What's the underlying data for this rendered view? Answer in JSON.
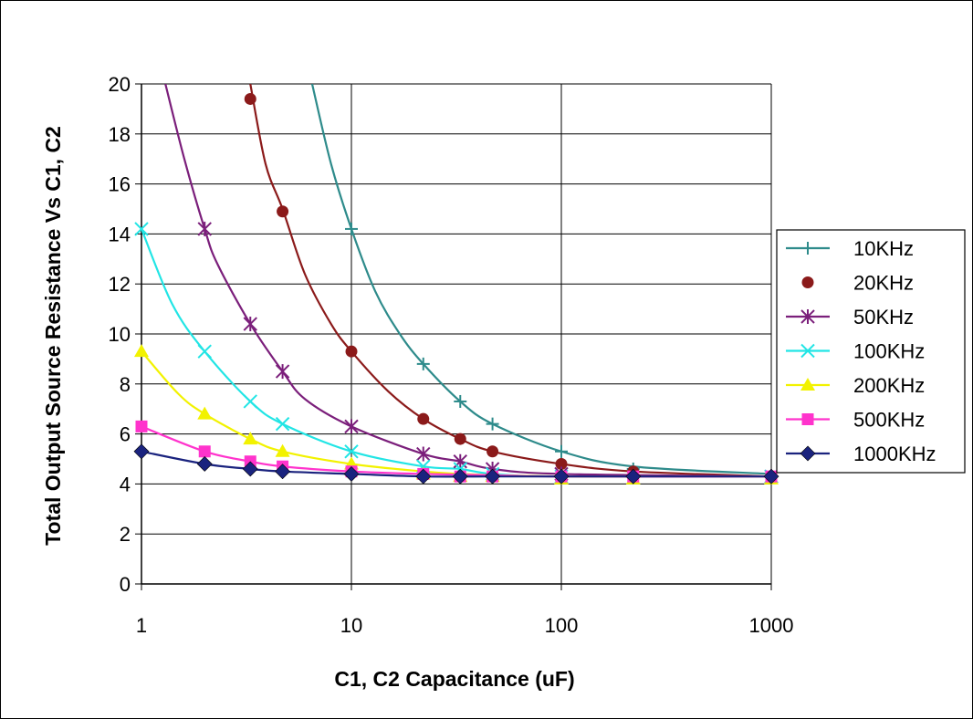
{
  "chart_data": {
    "type": "line",
    "title": "",
    "xlabel": "C1, C2 Capacitance (uF)",
    "ylabel": "Total Output Source Resistance Vs C1, C2",
    "xscale": "log",
    "xlim": [
      1,
      1000
    ],
    "ylim": [
      0,
      20
    ],
    "xticks": [
      "1",
      "10",
      "100",
      "1000"
    ],
    "yticks": [
      "0",
      "2",
      "4",
      "6",
      "8",
      "10",
      "12",
      "14",
      "16",
      "18",
      "20"
    ],
    "grid": "on",
    "legend_position": "right",
    "series": [
      {
        "name": "10KHz",
        "marker": "plus",
        "color": "#2E8B8B",
        "curve_x": [
          6.5,
          8,
          10,
          13,
          17,
          22,
          33,
          47,
          100,
          220,
          1000
        ],
        "curve_y": [
          20,
          16.8,
          14.2,
          11.7,
          10,
          8.8,
          7.3,
          6.4,
          5.3,
          4.7,
          4.4
        ],
        "marker_x": [
          10,
          22,
          33,
          47,
          100,
          220,
          1000
        ],
        "marker_y": [
          14.2,
          8.8,
          7.3,
          6.4,
          5.3,
          4.6,
          4.3
        ]
      },
      {
        "name": "20KHz",
        "marker": "circle",
        "color": "#8B1A1A",
        "curve_x": [
          3.3,
          3.9,
          4.7,
          6,
          8,
          10,
          15,
          22,
          33,
          47,
          100,
          220,
          1000
        ],
        "curve_y": [
          20,
          16.8,
          15,
          12.4,
          10.4,
          9.3,
          7.7,
          6.6,
          5.8,
          5.3,
          4.8,
          4.5,
          4.3
        ],
        "marker_x": [
          3.3,
          4.7,
          10,
          22,
          33,
          47,
          100,
          220,
          1000
        ],
        "marker_y": [
          19.4,
          14.9,
          9.3,
          6.6,
          5.8,
          5.3,
          4.8,
          4.5,
          4.3
        ]
      },
      {
        "name": "50KHz",
        "marker": "star",
        "color": "#7B1F7B",
        "curve_x": [
          1.3,
          1.6,
          2,
          2.3,
          3.3,
          4.7,
          6,
          10,
          22,
          33,
          47,
          100,
          1000
        ],
        "curve_y": [
          20,
          17,
          14.2,
          12.8,
          10.4,
          8.5,
          7.4,
          6.3,
          5.2,
          4.9,
          4.6,
          4.4,
          4.3
        ],
        "marker_x": [
          2,
          3.3,
          4.7,
          10,
          22,
          33,
          47,
          100,
          1000
        ],
        "marker_y": [
          14.2,
          10.4,
          8.5,
          6.3,
          5.2,
          4.9,
          4.6,
          4.4,
          4.3
        ]
      },
      {
        "name": "100KHz",
        "marker": "x",
        "color": "#22E5E5",
        "curve_x": [
          1,
          1.4,
          2,
          3.3,
          4.7,
          10,
          22,
          33,
          47,
          100,
          1000
        ],
        "curve_y": [
          14.2,
          11.2,
          9.3,
          7.3,
          6.4,
          5.3,
          4.7,
          4.6,
          4.4,
          4.3,
          4.3
        ],
        "marker_x": [
          1,
          2,
          3.3,
          4.7,
          10,
          22,
          33,
          47,
          100,
          1000
        ],
        "marker_y": [
          14.2,
          9.3,
          7.3,
          6.4,
          5.3,
          4.7,
          4.6,
          4.4,
          4.3,
          4.3
        ]
      },
      {
        "name": "200KHz",
        "marker": "triangle",
        "color": "#F2F200",
        "curve_x": [
          1,
          1.5,
          2,
          3.3,
          4.7,
          10,
          22,
          33,
          47,
          100,
          220,
          1000
        ],
        "curve_y": [
          9.3,
          7.6,
          6.8,
          5.8,
          5.3,
          4.8,
          4.5,
          4.4,
          4.35,
          4.3,
          4.3,
          4.3
        ],
        "marker_x": [
          1,
          2,
          3.3,
          4.7,
          10,
          22,
          33,
          47,
          100,
          220,
          1000
        ],
        "marker_y": [
          9.3,
          6.8,
          5.8,
          5.3,
          4.8,
          4.4,
          4.3,
          4.3,
          4.2,
          4.2,
          4.2
        ]
      },
      {
        "name": "500KHz",
        "marker": "square",
        "color": "#FF33CC",
        "curve_x": [
          1,
          2,
          3.3,
          4.7,
          10,
          22,
          47,
          100,
          1000
        ],
        "curve_y": [
          6.3,
          5.3,
          4.9,
          4.7,
          4.5,
          4.4,
          4.35,
          4.3,
          4.3
        ],
        "marker_x": [
          1,
          2,
          3.3,
          4.7,
          10,
          22,
          33,
          47,
          100,
          220,
          1000
        ],
        "marker_y": [
          6.3,
          5.3,
          4.9,
          4.7,
          4.5,
          4.4,
          4.3,
          4.3,
          4.3,
          4.3,
          4.3
        ]
      },
      {
        "name": "1000KHz",
        "marker": "diamond",
        "color": "#1A237E",
        "curve_x": [
          1,
          2,
          3.3,
          4.7,
          10,
          22,
          47,
          100,
          1000
        ],
        "curve_y": [
          5.3,
          4.8,
          4.6,
          4.5,
          4.4,
          4.3,
          4.3,
          4.3,
          4.3
        ],
        "marker_x": [
          1,
          2,
          3.3,
          4.7,
          10,
          22,
          33,
          47,
          100,
          220,
          1000
        ],
        "marker_y": [
          5.3,
          4.8,
          4.6,
          4.5,
          4.4,
          4.3,
          4.3,
          4.3,
          4.3,
          4.3,
          4.3
        ]
      }
    ]
  }
}
